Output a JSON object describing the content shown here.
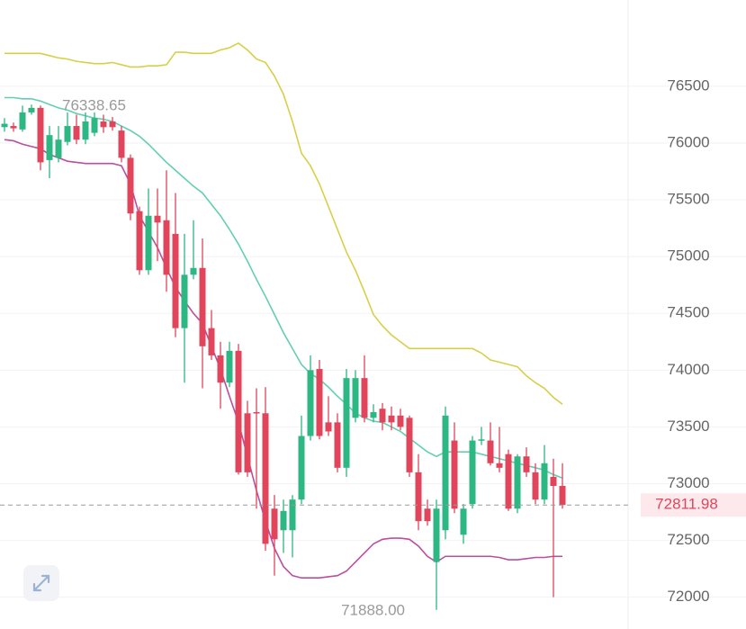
{
  "chart_data": {
    "type": "candlestick",
    "ylim": [
      71720,
      77260
    ],
    "yticks": [
      72000,
      72500,
      73000,
      73500,
      74000,
      74500,
      75000,
      75500,
      76000,
      76500
    ],
    "grid": true,
    "up_color": "#2db783",
    "down_color": "#e0455b",
    "open": [
      76140,
      76150,
      76120,
      76270,
      76310,
      75850,
      75870,
      76010,
      76150,
      76030,
      76090,
      76190,
      76190,
      76110,
      75870,
      75400,
      74880,
      75360,
      75320,
      75200,
      74370,
      74840,
      74900,
      74370,
      74130,
      73890,
      74170,
      73620,
      73630,
      73620,
      72780,
      72590,
      72590,
      72860,
      73420,
      74010,
      73540,
      73540,
      73140,
      73580,
      73930,
      73580,
      73660,
      73600,
      73600,
      73580,
      73100,
      72780,
      72310,
      72590,
      73380,
      72550,
      72820,
      73380,
      73380,
      73180,
      73260,
      72780,
      73240,
      73100,
      72860,
      73060,
      72980
    ],
    "high": [
      76220,
      76180,
      76330,
      76338.65,
      76330,
      76150,
      76150,
      76270,
      76250,
      76270,
      76270,
      76250,
      76230,
      76150,
      75900,
      75440,
      75600,
      75600,
      75760,
      75560,
      75200,
      75320,
      75160,
      74530,
      74250,
      74250,
      74230,
      73730,
      73840,
      73850,
      72900,
      72860,
      72900,
      73600,
      74130,
      74090,
      73770,
      73620,
      74010,
      74000,
      74130,
      73700,
      73710,
      73680,
      73660,
      73600,
      73260,
      72860,
      72860,
      73680,
      73540,
      72820,
      73420,
      73500,
      73540,
      73500,
      73300,
      73260,
      73320,
      73180,
      73340,
      73220,
      73180
    ],
    "low": [
      76100,
      76100,
      76100,
      76250,
      75760,
      75690,
      75830,
      75980,
      75990,
      75990,
      76060,
      76090,
      76110,
      75830,
      75320,
      74840,
      74840,
      74960,
      74690,
      74290,
      73890,
      74800,
      73840,
      74090,
      73660,
      73850,
      73080,
      73060,
      72780,
      72410,
      72190,
      72390,
      72350,
      72820,
      73380,
      73390,
      73420,
      73100,
      73060,
      73540,
      73540,
      73540,
      73470,
      73470,
      73470,
      73060,
      72590,
      72630,
      71888,
      72510,
      72740,
      72470,
      72780,
      73340,
      73160,
      73100,
      72760,
      72740,
      73060,
      72820,
      72820,
      72000,
      72780
    ],
    "close": [
      76170,
      76130,
      76270,
      76310,
      75830,
      76070,
      76030,
      76150,
      76030,
      76190,
      76220,
      76140,
      76140,
      75870,
      75380,
      74880,
      75360,
      75300,
      74840,
      74370,
      74840,
      74900,
      74210,
      74130,
      73890,
      74170,
      73100,
      73100,
      73620,
      72470,
      72510,
      72760,
      72860,
      73420,
      74000,
      73420,
      73460,
      73140,
      73930,
      73930,
      73580,
      73630,
      73540,
      73540,
      73500,
      73100,
      72670,
      72670,
      72780,
      73600,
      72780,
      72780,
      73380,
      73390,
      73180,
      73140,
      72780,
      73240,
      73100,
      72860,
      73180,
      72980,
      72811.98
    ],
    "bands": [
      {
        "color": "#d8cf48",
        "values": [
          76790,
          76790,
          76790,
          76790,
          76790,
          76770,
          76750,
          76740,
          76720,
          76710,
          76700,
          76700,
          76710,
          76690,
          76670,
          76670,
          76680,
          76680,
          76690,
          76800,
          76800,
          76790,
          76790,
          76790,
          76820,
          76840,
          76880,
          76820,
          76740,
          76710,
          76590,
          76430,
          76190,
          75910,
          75800,
          75640,
          75440,
          75240,
          75040,
          74880,
          74690,
          74490,
          74390,
          74310,
          74250,
          74190,
          74190,
          74190,
          74190,
          74190,
          74190,
          74190,
          74190,
          74150,
          74090,
          74070,
          74050,
          74030,
          73950,
          73890,
          73840,
          73760,
          73700
        ]
      },
      {
        "color": "#63cfb2",
        "values": [
          76400,
          76400,
          76390,
          76390,
          76370,
          76340,
          76310,
          76290,
          76260,
          76240,
          76220,
          76210,
          76190,
          76150,
          76110,
          76060,
          75990,
          75910,
          75830,
          75760,
          75690,
          75620,
          75560,
          75460,
          75360,
          75240,
          75110,
          74960,
          74800,
          74650,
          74490,
          74330,
          74190,
          74050,
          73970,
          73920,
          73850,
          73770,
          73700,
          73620,
          73580,
          73550,
          73540,
          73500,
          73460,
          73400,
          73340,
          73280,
          73240,
          73280,
          73280,
          73280,
          73280,
          73260,
          73240,
          73220,
          73200,
          73180,
          73160,
          73140,
          73120,
          73080,
          73050
        ]
      },
      {
        "color": "#b8509f",
        "values": [
          76030,
          76020,
          75990,
          75970,
          75950,
          75900,
          75870,
          75840,
          75830,
          75820,
          75820,
          75820,
          75820,
          75800,
          75640,
          75360,
          75220,
          75080,
          74900,
          74730,
          74610,
          74500,
          74410,
          74210,
          74010,
          73770,
          73540,
          73240,
          72940,
          72670,
          72430,
          72270,
          72190,
          72170,
          72170,
          72170,
          72180,
          72190,
          72230,
          72310,
          72390,
          72470,
          72510,
          72520,
          72520,
          72510,
          72450,
          72360,
          72310,
          72360,
          72360,
          72360,
          72360,
          72360,
          72360,
          72350,
          72330,
          72330,
          72340,
          72350,
          72350,
          72360,
          72360
        ]
      }
    ],
    "min_label": "71888.00"
  }
}
